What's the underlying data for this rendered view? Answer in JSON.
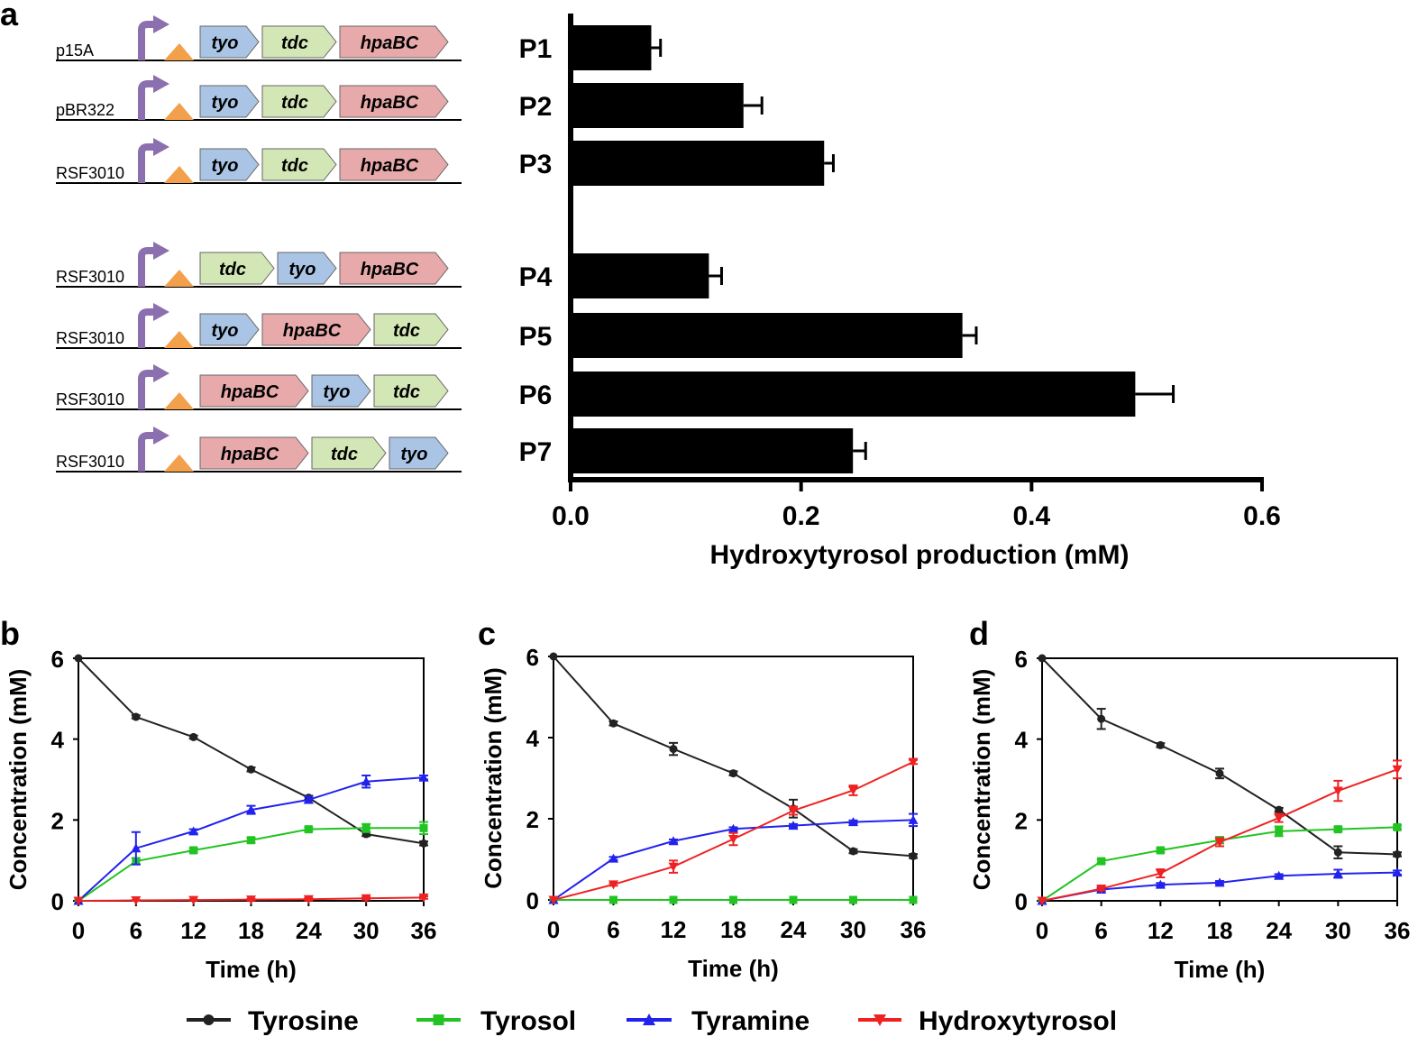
{
  "panel_labels": [
    "a",
    "b",
    "c",
    "d"
  ],
  "colors": {
    "tyo": "#a9c4e4",
    "tdc": "#d3e6b5",
    "hpaBC": "#e8a9ab",
    "promoter": "#8c6fae",
    "rbs": "#f2a04c",
    "Tyrosine": "#222222",
    "Tyrosol": "#22c422",
    "Tyramine": "#2222ee",
    "Hydroxytyrosol": "#ee2222"
  },
  "constructs": [
    {
      "backbone": "p15A",
      "genes": [
        "tyo",
        "tdc",
        "hpaBC"
      ]
    },
    {
      "backbone": "pBR322",
      "genes": [
        "tyo",
        "tdc",
        "hpaBC"
      ]
    },
    {
      "backbone": "RSF3010",
      "genes": [
        "tyo",
        "tdc",
        "hpaBC"
      ]
    },
    {
      "backbone": "RSF3010",
      "genes": [
        "tdc",
        "tyo",
        "hpaBC"
      ]
    },
    {
      "backbone": "RSF3010",
      "genes": [
        "tyo",
        "hpaBC",
        "tdc"
      ]
    },
    {
      "backbone": "RSF3010",
      "genes": [
        "hpaBC",
        "tyo",
        "tdc"
      ]
    },
    {
      "backbone": "RSF3010",
      "genes": [
        "hpaBC",
        "tdc",
        "tyo"
      ]
    }
  ],
  "chart_data": [
    {
      "panel": "a",
      "type": "bar",
      "orientation": "horizontal",
      "categories": [
        "P1",
        "P2",
        "P3",
        "P4",
        "P5",
        "P6",
        "P7"
      ],
      "values": [
        0.07,
        0.15,
        0.22,
        0.12,
        0.34,
        0.49,
        0.245
      ],
      "errors": [
        0.008,
        0.016,
        0.008,
        0.011,
        0.012,
        0.033,
        0.011
      ],
      "xlabel": "Hydroxytyrosol production (mM)",
      "xlim": [
        0,
        0.6
      ],
      "xticks": [
        "0.0",
        "0.2",
        "0.4",
        "0.6"
      ]
    },
    {
      "panel": "b",
      "type": "line",
      "xlabel": "Time (h)",
      "ylabel": "Concentration (mM)",
      "x": [
        0,
        6,
        12,
        18,
        24,
        30,
        36
      ],
      "xlim": [
        0,
        36
      ],
      "ylim": [
        0,
        6
      ],
      "xticks": [
        "0",
        "6",
        "12",
        "18",
        "24",
        "30",
        "36"
      ],
      "yticks": [
        "0",
        "2",
        "4",
        "6"
      ],
      "series": [
        {
          "name": "Tyrosine",
          "values": [
            6.0,
            4.55,
            4.05,
            3.25,
            2.55,
            1.65,
            1.42
          ],
          "errors": [
            0,
            0.04,
            0.04,
            0.05,
            0.05,
            0.05,
            0.05
          ]
        },
        {
          "name": "Tyrosol",
          "values": [
            0,
            0.98,
            1.25,
            1.5,
            1.77,
            1.8,
            1.8
          ],
          "errors": [
            0,
            0.08,
            0.05,
            0.06,
            0.05,
            0.1,
            0.15
          ]
        },
        {
          "name": "Tyramine",
          "values": [
            0,
            1.3,
            1.72,
            2.25,
            2.5,
            2.95,
            3.05
          ],
          "errors": [
            0,
            0.4,
            0.05,
            0.1,
            0.08,
            0.15,
            0.05
          ]
        },
        {
          "name": "Hydroxytyrosol",
          "values": [
            0,
            0.01,
            0.02,
            0.03,
            0.04,
            0.06,
            0.08
          ],
          "errors": [
            0,
            0.01,
            0.01,
            0.02,
            0.03,
            0.03,
            0.03
          ]
        }
      ]
    },
    {
      "panel": "c",
      "type": "line",
      "xlabel": "Time (h)",
      "ylabel": "Concentration (mM)",
      "x": [
        0,
        6,
        12,
        18,
        24,
        30,
        36
      ],
      "xlim": [
        0,
        36
      ],
      "ylim": [
        0,
        6
      ],
      "xticks": [
        "0",
        "6",
        "12",
        "18",
        "24",
        "30",
        "36"
      ],
      "yticks": [
        "0",
        "2",
        "4",
        "6"
      ],
      "series": [
        {
          "name": "Tyrosine",
          "values": [
            6.0,
            4.35,
            3.72,
            3.12,
            2.25,
            1.2,
            1.08
          ],
          "errors": [
            0,
            0.05,
            0.15,
            0.05,
            0.22,
            0.05,
            0.05
          ]
        },
        {
          "name": "Tyrosol",
          "values": [
            0,
            0,
            0,
            0,
            0,
            0,
            0
          ],
          "errors": [
            0,
            0,
            0,
            0,
            0,
            0,
            0
          ]
        },
        {
          "name": "Tyramine",
          "values": [
            0,
            1.02,
            1.45,
            1.75,
            1.83,
            1.92,
            1.97
          ],
          "errors": [
            0,
            0.04,
            0.04,
            0.04,
            0.04,
            0.04,
            0.15
          ]
        },
        {
          "name": "Hydroxytyrosol",
          "values": [
            0,
            0.38,
            0.82,
            1.5,
            2.2,
            2.7,
            3.4
          ],
          "errors": [
            0,
            0.03,
            0.15,
            0.15,
            0.1,
            0.12,
            0.05
          ]
        }
      ]
    },
    {
      "panel": "d",
      "type": "line",
      "xlabel": "Time (h)",
      "ylabel": "Concentration (mM)",
      "x": [
        0,
        6,
        12,
        18,
        24,
        30,
        36
      ],
      "xlim": [
        0,
        36
      ],
      "ylim": [
        0,
        6
      ],
      "xticks": [
        "0",
        "6",
        "12",
        "18",
        "24",
        "30",
        "36"
      ],
      "yticks": [
        "0",
        "2",
        "4",
        "6"
      ],
      "series": [
        {
          "name": "Tyrosine",
          "values": [
            6.0,
            4.5,
            3.85,
            3.15,
            2.25,
            1.2,
            1.15
          ],
          "errors": [
            0,
            0.25,
            0.05,
            0.12,
            0.05,
            0.15,
            0.05
          ]
        },
        {
          "name": "Tyrosol",
          "values": [
            0,
            0.98,
            1.25,
            1.5,
            1.72,
            1.77,
            1.82
          ],
          "errors": [
            0,
            0.05,
            0.05,
            0.08,
            0.12,
            0.05,
            0.05
          ]
        },
        {
          "name": "Tyramine",
          "values": [
            0,
            0.28,
            0.4,
            0.45,
            0.62,
            0.67,
            0.7
          ],
          "errors": [
            0,
            0.04,
            0.04,
            0.04,
            0.04,
            0.1,
            0.05
          ]
        },
        {
          "name": "Hydroxytyrosol",
          "values": [
            0,
            0.3,
            0.68,
            1.45,
            2.05,
            2.72,
            3.25
          ],
          "errors": [
            0,
            0.04,
            0.1,
            0.1,
            0.1,
            0.25,
            0.22
          ]
        }
      ]
    }
  ],
  "legend": [
    "Tyrosine",
    "Tyrosol",
    "Tyramine",
    "Hydroxytyrosol"
  ]
}
